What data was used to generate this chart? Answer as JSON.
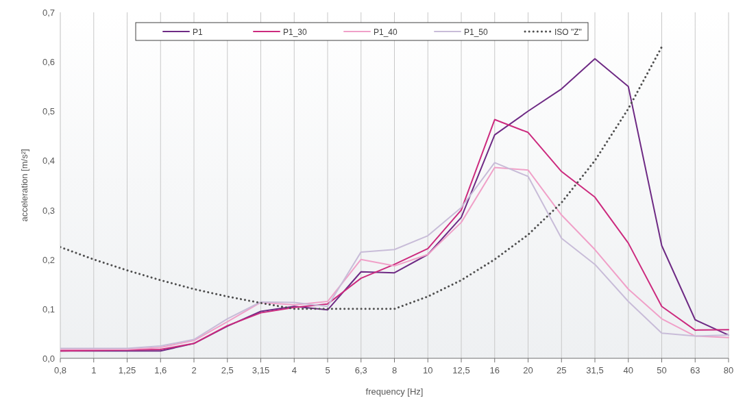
{
  "chart_data": {
    "type": "line",
    "xlabel": "frequency [Hz]",
    "ylabel": "acceleration [m/s²]",
    "categories": [
      "0,8",
      "1",
      "1,25",
      "1,6",
      "2",
      "2,5",
      "3,15",
      "4",
      "5",
      "6,3",
      "8",
      "10",
      "12,5",
      "16",
      "20",
      "25",
      "31,5",
      "40",
      "50",
      "63",
      "80"
    ],
    "ylim": [
      0,
      0.7
    ],
    "yticks": [
      {
        "value": 0,
        "label": "0,0"
      },
      {
        "value": 0.1,
        "label": "0,1"
      },
      {
        "value": 0.2,
        "label": "0,2"
      },
      {
        "value": 0.3,
        "label": "0,3"
      },
      {
        "value": 0.4,
        "label": "0,4"
      },
      {
        "value": 0.5,
        "label": "0,5"
      },
      {
        "value": 0.6,
        "label": "0,6"
      },
      {
        "value": 0.7,
        "label": "0,7"
      }
    ],
    "grid": "x",
    "legend": "top",
    "marker": "none",
    "series": [
      {
        "name": "P1",
        "color": "#6e2a84",
        "line_style": "solid",
        "values": [
          0.015,
          0.015,
          0.015,
          0.015,
          0.03,
          0.065,
          0.095,
          0.105,
          0.098,
          0.175,
          0.173,
          0.21,
          0.285,
          0.452,
          0.5,
          0.545,
          0.606,
          0.55,
          0.228,
          0.078,
          0.047
        ]
      },
      {
        "name": "P1_30",
        "color": "#cc2a7e",
        "line_style": "solid",
        "values": [
          0.015,
          0.016,
          0.017,
          0.018,
          0.03,
          0.066,
          0.092,
          0.103,
          0.11,
          0.162,
          0.19,
          0.222,
          0.3,
          0.483,
          0.457,
          0.378,
          0.326,
          0.233,
          0.105,
          0.057,
          0.058
        ]
      },
      {
        "name": "P1_40",
        "color": "#f0a0c8",
        "line_style": "solid",
        "values": [
          0.018,
          0.018,
          0.018,
          0.022,
          0.036,
          0.074,
          0.113,
          0.108,
          0.115,
          0.2,
          0.187,
          0.21,
          0.275,
          0.386,
          0.381,
          0.29,
          0.22,
          0.14,
          0.08,
          0.045,
          0.042
        ]
      },
      {
        "name": "P1_50",
        "color": "#c8bcd8",
        "line_style": "solid",
        "values": [
          0.02,
          0.02,
          0.02,
          0.025,
          0.038,
          0.08,
          0.114,
          0.113,
          0.105,
          0.215,
          0.22,
          0.248,
          0.305,
          0.396,
          0.368,
          0.243,
          0.19,
          0.115,
          0.051,
          0.045,
          0.047
        ]
      },
      {
        "name": "ISO \"Z\"",
        "color": "#505050",
        "line_style": "dotted",
        "values": [
          0.225,
          0.2,
          0.178,
          0.158,
          0.14,
          0.125,
          0.112,
          0.1,
          0.1,
          0.1,
          0.1,
          0.125,
          0.158,
          0.2,
          0.25,
          0.315,
          0.4,
          0.505,
          0.63,
          null,
          null
        ]
      }
    ]
  }
}
